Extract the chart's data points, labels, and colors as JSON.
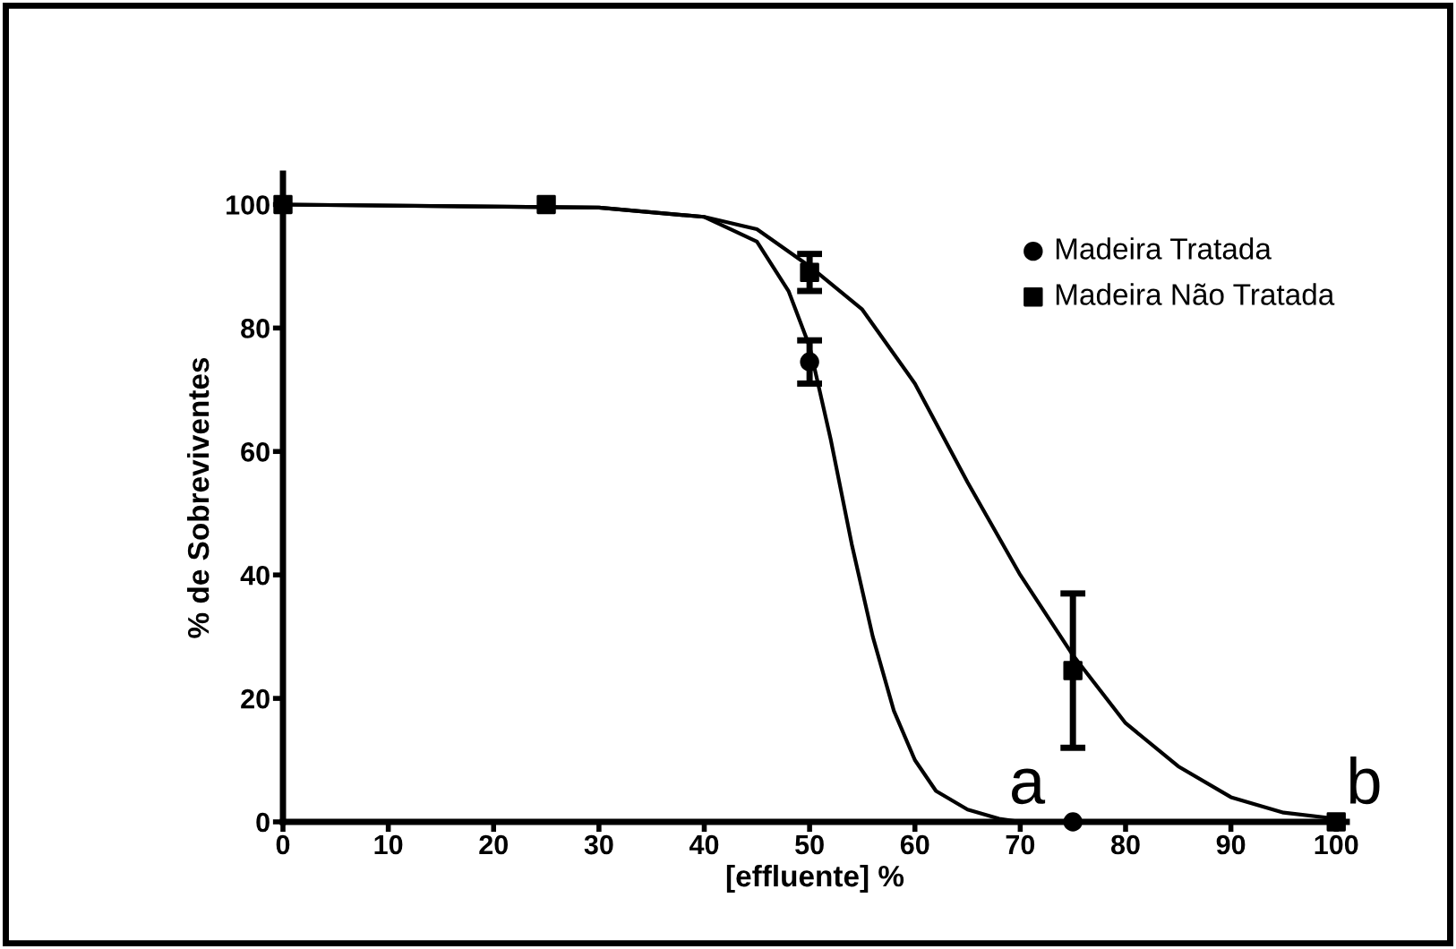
{
  "chart_data": {
    "type": "scatter",
    "xlabel": "[effluente] %",
    "ylabel": "% de Sobreviventes",
    "xlim": [
      0,
      101
    ],
    "ylim": [
      0,
      105
    ],
    "xticks": [
      0,
      10,
      20,
      30,
      40,
      50,
      60,
      70,
      80,
      90,
      100
    ],
    "yticks": [
      0,
      20,
      40,
      60,
      80,
      100
    ],
    "grid": false,
    "legend": "top right",
    "series": [
      {
        "name": "Madeira Tratada",
        "marker": "circle",
        "color": "#000000",
        "x": [
          50,
          75
        ],
        "values": [
          74.5,
          0
        ],
        "errors": [
          3.5,
          null
        ]
      },
      {
        "name": "Madeira Não Tratada",
        "marker": "square",
        "color": "#000000",
        "x": [
          0,
          25,
          50,
          75,
          100
        ],
        "values": [
          100,
          100,
          89,
          24.5,
          0
        ],
        "errors": [
          null,
          null,
          3,
          12.5,
          null
        ]
      },
      {
        "type": "line",
        "marker": "none",
        "color": "#000000",
        "x": [
          0,
          30,
          40,
          45,
          48,
          50,
          52,
          54,
          56,
          58,
          60,
          62,
          65,
          68,
          70
        ],
        "values": [
          100,
          99.5,
          98,
          94,
          86,
          77,
          62,
          45,
          30,
          18,
          10,
          5,
          2,
          0.5,
          0
        ]
      },
      {
        "type": "line",
        "marker": "none",
        "color": "#000000",
        "x": [
          0,
          30,
          40,
          45,
          50,
          55,
          60,
          65,
          70,
          75,
          80,
          85,
          90,
          95,
          100
        ],
        "values": [
          100,
          99.5,
          98,
          96,
          90,
          83,
          71,
          55,
          40,
          27,
          16,
          9,
          4,
          1.5,
          0.5
        ]
      }
    ],
    "annotations": [
      {
        "text": "a",
        "x": 68,
        "y": 0
      },
      {
        "text": "b",
        "x": 100,
        "y": 0
      }
    ]
  }
}
